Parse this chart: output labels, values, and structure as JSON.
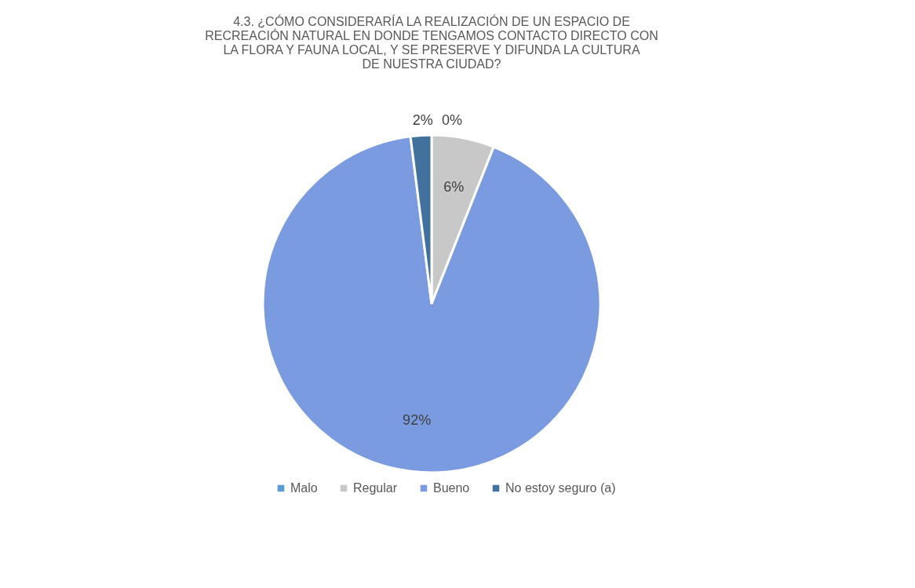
{
  "chart_data": {
    "type": "pie",
    "title": "4.3. ¿CÓMO CONSIDERARÍA LA REALIZACIÓN DE UN ESPACIO DE RECREACIÓN NATURAL EN DONDE TENGAMOS CONTACTO DIRECTO CON LA FLORA Y FAUNA LOCAL, Y SE PRESERVE Y DIFUNDA LA CULTURA DE NUESTRA CIUDAD?",
    "categories": [
      "Malo",
      "Regular",
      "Bueno",
      "No estoy seguro (a)"
    ],
    "values": [
      0,
      6,
      92,
      2
    ],
    "colors": [
      "#5b9bd5",
      "#c8c8c8",
      "#7b9be0",
      "#41719c"
    ],
    "value_labels": [
      "0%",
      "6%",
      "92%",
      "2%"
    ],
    "legend": "bottom"
  }
}
